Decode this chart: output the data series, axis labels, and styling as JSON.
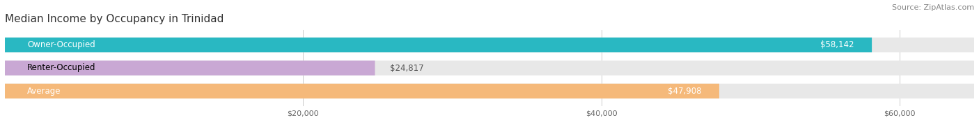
{
  "title": "Median Income by Occupancy in Trinidad",
  "source": "Source: ZipAtlas.com",
  "categories": [
    "Owner-Occupied",
    "Renter-Occupied",
    "Average"
  ],
  "values": [
    58142,
    24817,
    47908
  ],
  "bar_colors": [
    "#29b8c2",
    "#c9a8d4",
    "#f5b97a"
  ],
  "value_labels": [
    "$58,142",
    "$24,817",
    "$47,908"
  ],
  "xmax": 65000,
  "xticks": [
    20000,
    40000,
    60000
  ],
  "xtick_labels": [
    "$20,000",
    "$40,000",
    "$60,000"
  ],
  "title_fontsize": 11,
  "source_fontsize": 8,
  "label_fontsize": 8.5,
  "bar_label_fontsize": 8.5,
  "background_color": "#ffffff",
  "bar_height": 0.62,
  "label_inside_threshold": 35000
}
